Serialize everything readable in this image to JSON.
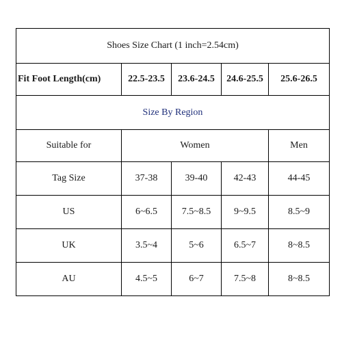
{
  "title": "Shoes Size Chart (1 inch=2.54cm)",
  "fit": {
    "label": "Fit Foot Length(cm)",
    "values": [
      "22.5-23.5",
      "23.6-24.5",
      "24.6-25.5",
      "25.6-26.5"
    ]
  },
  "region_header": "Size By Region",
  "colors": {
    "region_header": "#1f2f7a",
    "border": "#000000"
  },
  "groups": {
    "label": "Suitable for",
    "women": "Women",
    "men": "Men"
  },
  "rows": [
    {
      "label": "Tag Size",
      "values": [
        "37-38",
        "39-40",
        "42-43",
        "44-45"
      ]
    },
    {
      "label": "US",
      "values": [
        "6~6.5",
        "7.5~8.5",
        "9~9.5",
        "8.5~9"
      ]
    },
    {
      "label": "UK",
      "values": [
        "3.5~4",
        "5~6",
        "6.5~7",
        "8~8.5"
      ]
    },
    {
      "label": "AU",
      "values": [
        "4.5~5",
        "6~7",
        "7.5~8",
        "8~8.5"
      ]
    }
  ]
}
